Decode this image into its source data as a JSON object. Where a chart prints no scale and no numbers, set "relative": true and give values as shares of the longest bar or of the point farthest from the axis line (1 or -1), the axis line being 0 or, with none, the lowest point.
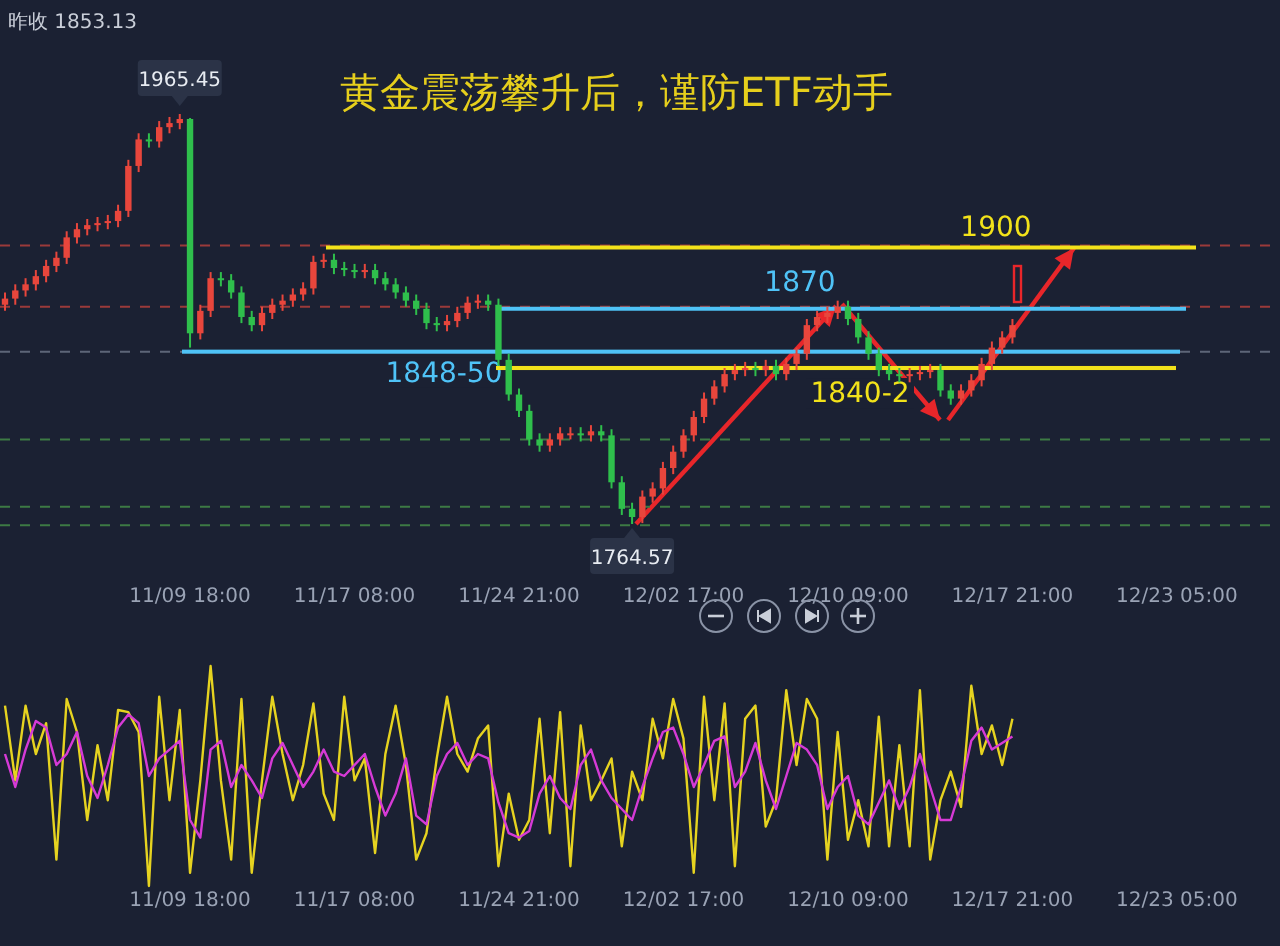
{
  "chart_data": [
    {
      "type": "candlestick",
      "title": "黄金震荡攀升后，谨防ETF动手",
      "categories": [
        null,
        null,
        null,
        null,
        null,
        null,
        null,
        null,
        null,
        null,
        null,
        null,
        null,
        null,
        null,
        null,
        null,
        null,
        "11/09 18:00",
        null,
        null,
        null,
        null,
        null,
        null,
        null,
        null,
        null,
        null,
        null,
        null,
        null,
        null,
        null,
        "11/17 08:00",
        null,
        null,
        null,
        null,
        null,
        null,
        null,
        null,
        null,
        null,
        null,
        null,
        null,
        null,
        null,
        "11/24 21:00",
        null,
        null,
        null,
        null,
        null,
        null,
        null,
        null,
        null,
        null,
        null,
        null,
        null,
        null,
        null,
        "12/02 17:00",
        null,
        null,
        null,
        null,
        null,
        null,
        null,
        null,
        null,
        null,
        null,
        null,
        null,
        null,
        null,
        "12/10 09:00",
        null,
        null,
        null,
        null,
        null,
        null,
        null,
        null,
        null,
        null,
        null,
        null,
        null,
        null,
        null,
        "12/17 21:00",
        null,
        null,
        null,
        null,
        null,
        null,
        null,
        null,
        null,
        null,
        null,
        null,
        null,
        null,
        null,
        "12/23 05:00",
        null,
        null,
        null,
        null,
        null,
        null,
        null,
        null,
        null,
        null
      ],
      "ohlc": [
        [
          1872,
          1878,
          1869,
          1875
        ],
        [
          1875,
          1882,
          1872,
          1879
        ],
        [
          1879,
          1885,
          1876,
          1882
        ],
        [
          1882,
          1889,
          1879,
          1886
        ],
        [
          1886,
          1894,
          1883,
          1891
        ],
        [
          1891,
          1898,
          1888,
          1895
        ],
        [
          1895,
          1908,
          1892,
          1905
        ],
        [
          1905,
          1912,
          1902,
          1909
        ],
        [
          1909,
          1914,
          1906,
          1911
        ],
        [
          1911,
          1915,
          1908,
          1912
        ],
        [
          1912,
          1916,
          1909,
          1913
        ],
        [
          1913,
          1921,
          1910,
          1918
        ],
        [
          1918,
          1943,
          1915,
          1940
        ],
        [
          1940,
          1956,
          1937,
          1953
        ],
        [
          1953,
          1956,
          1949,
          1952
        ],
        [
          1952,
          1962,
          1949,
          1959
        ],
        [
          1959,
          1964,
          1956,
          1961
        ],
        [
          1961,
          1965.45,
          1958,
          1963
        ],
        [
          1963,
          1963.5,
          1851,
          1858
        ],
        [
          1858,
          1872,
          1855,
          1869
        ],
        [
          1869,
          1888,
          1866,
          1885
        ],
        [
          1885,
          1888,
          1881,
          1884
        ],
        [
          1884,
          1887,
          1875,
          1878
        ],
        [
          1878,
          1881,
          1863,
          1866
        ],
        [
          1866,
          1869,
          1859,
          1862
        ],
        [
          1862,
          1871,
          1859,
          1868
        ],
        [
          1868,
          1875,
          1865,
          1872
        ],
        [
          1872,
          1877,
          1869,
          1874
        ],
        [
          1874,
          1880,
          1871,
          1877
        ],
        [
          1877,
          1883,
          1874,
          1880
        ],
        [
          1880,
          1896,
          1877,
          1893
        ],
        [
          1893,
          1897,
          1890,
          1894
        ],
        [
          1894,
          1897,
          1887,
          1890
        ],
        [
          1890,
          1893,
          1886,
          1889
        ],
        [
          1889,
          1892,
          1885,
          1888
        ],
        [
          1888,
          1892,
          1885,
          1889
        ],
        [
          1889,
          1892,
          1882,
          1885
        ],
        [
          1885,
          1888,
          1879,
          1882
        ],
        [
          1882,
          1885,
          1875,
          1878
        ],
        [
          1878,
          1881,
          1871,
          1874
        ],
        [
          1874,
          1877,
          1867,
          1870
        ],
        [
          1870,
          1873,
          1860,
          1863
        ],
        [
          1863,
          1866,
          1859,
          1862
        ],
        [
          1862,
          1867,
          1859,
          1864
        ],
        [
          1864,
          1871,
          1861,
          1868
        ],
        [
          1868,
          1876,
          1865,
          1873
        ],
        [
          1873,
          1877,
          1870,
          1874
        ],
        [
          1874,
          1877,
          1869,
          1872
        ],
        [
          1872,
          1875,
          1842,
          1845
        ],
        [
          1845,
          1848,
          1825,
          1828
        ],
        [
          1828,
          1831,
          1817,
          1820
        ],
        [
          1820,
          1823,
          1803,
          1806
        ],
        [
          1806,
          1809,
          1800,
          1803
        ],
        [
          1803,
          1809,
          1800,
          1806
        ],
        [
          1806,
          1812,
          1803,
          1809
        ],
        [
          1809,
          1812,
          1806,
          1809
        ],
        [
          1809,
          1812,
          1805,
          1808
        ],
        [
          1808,
          1813,
          1805,
          1810
        ],
        [
          1810,
          1813,
          1805,
          1808
        ],
        [
          1808,
          1811,
          1782,
          1785
        ],
        [
          1785,
          1788,
          1769,
          1772
        ],
        [
          1772,
          1775,
          1764.57,
          1768
        ],
        [
          1768,
          1781,
          1765,
          1778
        ],
        [
          1778,
          1785,
          1775,
          1782
        ],
        [
          1782,
          1795,
          1779,
          1792
        ],
        [
          1792,
          1803,
          1789,
          1800
        ],
        [
          1800,
          1811,
          1797,
          1808
        ],
        [
          1808,
          1820,
          1805,
          1817
        ],
        [
          1817,
          1829,
          1814,
          1826
        ],
        [
          1826,
          1835,
          1823,
          1832
        ],
        [
          1832,
          1841,
          1829,
          1838
        ],
        [
          1838,
          1843,
          1835,
          1840
        ],
        [
          1840,
          1844,
          1837,
          1841
        ],
        [
          1841,
          1844,
          1837,
          1840
        ],
        [
          1840,
          1845,
          1837,
          1842
        ],
        [
          1842,
          1845,
          1835,
          1838
        ],
        [
          1838,
          1846,
          1835,
          1843
        ],
        [
          1843,
          1851,
          1840,
          1848
        ],
        [
          1848,
          1865,
          1845,
          1862
        ],
        [
          1862,
          1869,
          1859,
          1866
        ],
        [
          1866,
          1871,
          1863,
          1868
        ],
        [
          1868,
          1874,
          1865,
          1871
        ],
        [
          1871,
          1874,
          1862,
          1865
        ],
        [
          1865,
          1868,
          1853,
          1856
        ],
        [
          1856,
          1859,
          1845,
          1848
        ],
        [
          1848,
          1851,
          1837,
          1840
        ],
        [
          1840,
          1843,
          1835,
          1838
        ],
        [
          1838,
          1841,
          1834,
          1837
        ],
        [
          1837,
          1841,
          1834,
          1838
        ],
        [
          1838,
          1842,
          1835,
          1839
        ],
        [
          1839,
          1843,
          1836,
          1840
        ],
        [
          1840,
          1843,
          1827,
          1830
        ],
        [
          1830,
          1833,
          1823,
          1826
        ],
        [
          1826,
          1833,
          1823,
          1830
        ],
        [
          1830,
          1838,
          1827,
          1835
        ],
        [
          1835,
          1846,
          1832,
          1843
        ],
        [
          1843,
          1854,
          1840,
          1851
        ],
        [
          1851,
          1859,
          1848,
          1856
        ],
        [
          1856,
          1865,
          1853,
          1862
        ],
        null,
        null,
        null,
        null,
        null,
        null,
        null,
        null,
        null,
        null,
        null,
        null,
        null,
        null,
        null,
        null,
        null,
        null,
        null,
        null,
        null,
        null,
        null,
        null,
        null,
        null
      ],
      "ref_lines": [
        {
          "axis": "y",
          "value": 1900,
          "label": "1900",
          "color": "#f2e21a"
        },
        {
          "axis": "y",
          "value": 1870,
          "label": "1870",
          "color": "#4fc3f7"
        },
        {
          "axis": "y",
          "value": 1901,
          "color": "#9b3a3a",
          "line_style": "dashed"
        },
        {
          "axis": "y",
          "value": 1871,
          "color": "#9b3a3a",
          "line_style": "dashed"
        },
        {
          "axis": "y",
          "value": 1849,
          "color": "#5d6578",
          "line_style": "dashed"
        },
        {
          "axis": "y",
          "value": 1806,
          "color": "#3d7a44",
          "line_style": "dashed"
        },
        {
          "axis": "y",
          "value": 1773,
          "color": "#3d7a44",
          "line_style": "dashed"
        },
        {
          "axis": "y",
          "value": 1764,
          "color": "#3d7a44",
          "line_style": "dashed"
        }
      ],
      "bands": [
        {
          "axis": "y",
          "from": 1848,
          "to": 1850,
          "label": "1848-50",
          "color": "#4fc3f7"
        },
        {
          "axis": "y",
          "from": 1840,
          "to": 1842,
          "label": "1840-2",
          "color": "#f2e21a"
        }
      ],
      "annotations": [
        "昨收  1853.13",
        {
          "text": "1965.45",
          "y": 1965.45
        },
        {
          "text": "1764.57",
          "y": 1764.57
        }
      ]
    },
    {
      "type": "line",
      "relative": true,
      "categories": [
        null,
        null,
        null,
        null,
        null,
        null,
        null,
        null,
        null,
        null,
        null,
        null,
        null,
        null,
        null,
        null,
        null,
        null,
        "11/09 18:00",
        null,
        null,
        null,
        null,
        null,
        null,
        null,
        null,
        null,
        null,
        null,
        null,
        null,
        null,
        null,
        "11/17 08:00",
        null,
        null,
        null,
        null,
        null,
        null,
        null,
        null,
        null,
        null,
        null,
        null,
        null,
        null,
        null,
        "11/24 21:00",
        null,
        null,
        null,
        null,
        null,
        null,
        null,
        null,
        null,
        null,
        null,
        null,
        null,
        null,
        null,
        "12/02 17:00",
        null,
        null,
        null,
        null,
        null,
        null,
        null,
        null,
        null,
        null,
        null,
        null,
        null,
        null,
        null,
        "12/10 09:00",
        null,
        null,
        null,
        null,
        null,
        null,
        null,
        null,
        null,
        null,
        null,
        null,
        null,
        null,
        null,
        "12/17 21:00",
        null,
        null,
        null,
        null,
        null,
        null,
        null,
        null,
        null,
        null,
        null,
        null,
        null,
        null,
        null,
        "12/23 05:00",
        null,
        null,
        null,
        null,
        null,
        null,
        null,
        null,
        null,
        null
      ],
      "series": [
        {
          "color": "#e6d320",
          "values": [
            0.82,
            0.48,
            0.82,
            0.6,
            0.74,
            0.12,
            0.85,
            0.7,
            0.3,
            0.64,
            0.39,
            0.8,
            0.79,
            0.7,
            0,
            0.86,
            0.39,
            0.8,
            0.06,
            0.48,
            1,
            0.48,
            0.12,
            0.85,
            0.06,
            0.48,
            0.86,
            0.6,
            0.39,
            0.55,
            0.83,
            0.42,
            0.3,
            0.86,
            0.48,
            0.58,
            0.15,
            0.6,
            0.82,
            0.55,
            0.12,
            0.24,
            0.58,
            0.86,
            0.6,
            0.52,
            0.67,
            0.73,
            0.09,
            0.42,
            0.21,
            0.3,
            0.76,
            0.24,
            0.79,
            0.09,
            0.73,
            0.39,
            0.48,
            0.58,
            0.18,
            0.52,
            0.39,
            0.76,
            0.58,
            0.85,
            0.67,
            0.06,
            0.86,
            0.39,
            0.83,
            0.09,
            0.76,
            0.82,
            0.27,
            0.39,
            0.89,
            0.55,
            0.85,
            0.76,
            0.12,
            0.7,
            0.21,
            0.39,
            0.18,
            0.77,
            0.18,
            0.64,
            0.18,
            0.89,
            0.12,
            0.39,
            0.52,
            0.36,
            0.91,
            0.6,
            0.73,
            0.55,
            0.76,
            null,
            null,
            null,
            null,
            null,
            null,
            null,
            null,
            null,
            null,
            null,
            null,
            null,
            null,
            null,
            null,
            null,
            null,
            null,
            null,
            null,
            null,
            null,
            null,
            null,
            null
          ]
        },
        {
          "color": "#d63ad6",
          "values": [
            0.6,
            0.45,
            0.62,
            0.75,
            0.72,
            0.55,
            0.6,
            0.7,
            0.5,
            0.4,
            0.55,
            0.72,
            0.78,
            0.74,
            0.5,
            0.58,
            0.62,
            0.66,
            0.3,
            0.22,
            0.62,
            0.66,
            0.45,
            0.55,
            0.48,
            0.4,
            0.58,
            0.65,
            0.55,
            0.45,
            0.52,
            0.62,
            0.52,
            0.5,
            0.55,
            0.6,
            0.45,
            0.32,
            0.42,
            0.58,
            0.32,
            0.28,
            0.5,
            0.6,
            0.65,
            0.55,
            0.6,
            0.58,
            0.38,
            0.24,
            0.22,
            0.25,
            0.42,
            0.5,
            0.4,
            0.35,
            0.55,
            0.62,
            0.48,
            0.4,
            0.35,
            0.3,
            0.45,
            0.58,
            0.7,
            0.72,
            0.6,
            0.45,
            0.55,
            0.66,
            0.68,
            0.45,
            0.52,
            0.65,
            0.48,
            0.35,
            0.5,
            0.65,
            0.62,
            0.55,
            0.35,
            0.45,
            0.5,
            0.32,
            0.28,
            0.38,
            0.48,
            0.35,
            0.45,
            0.6,
            0.45,
            0.3,
            0.3,
            0.45,
            0.66,
            0.72,
            0.62,
            0.65,
            0.68,
            null,
            null,
            null,
            null,
            null,
            null,
            null,
            null,
            null,
            null,
            null,
            null,
            null,
            null,
            null,
            null,
            null,
            null,
            null,
            null,
            null,
            null,
            null,
            null,
            null,
            null
          ]
        }
      ]
    }
  ]
}
